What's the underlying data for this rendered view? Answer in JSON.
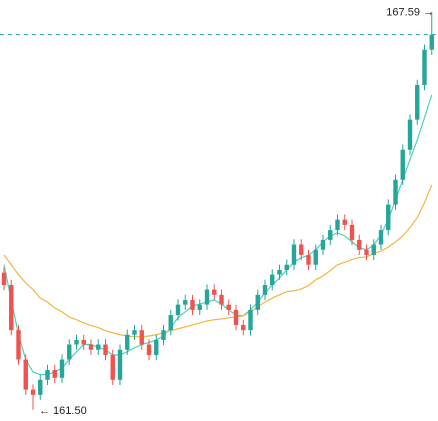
{
  "chart_data": {
    "type": "candlestick",
    "ylim": [
      161.33,
      167.77
    ],
    "up_color": "#26a69a",
    "down_color": "#ef5350",
    "last_price_line": true,
    "high_label": "167.59 →",
    "low_label": "← 161.50",
    "open": [
      163.6,
      163.41,
      162.72,
      162.27,
      161.81,
      161.73,
      161.96,
      162.11,
      161.99,
      162.27,
      162.5,
      162.57,
      162.5,
      162.42,
      162.5,
      162.34,
      161.96,
      162.42,
      162.65,
      162.72,
      162.5,
      162.34,
      162.57,
      162.72,
      162.95,
      163.11,
      163.18,
      163.03,
      163.11,
      163.34,
      163.26,
      163.11,
      163.03,
      162.8,
      162.72,
      163.03,
      163.26,
      163.41,
      163.57,
      163.64,
      163.72,
      164.03,
      163.87,
      163.72,
      163.95,
      164.1,
      164.25,
      164.41,
      164.33,
      164.1,
      163.95,
      163.87,
      164.03,
      164.25,
      164.64,
      165.02,
      165.48,
      165.94,
      166.47,
      167.01
    ],
    "high": [
      163.68,
      163.49,
      162.8,
      162.35,
      161.89,
      162.04,
      162.19,
      162.19,
      162.35,
      162.58,
      162.65,
      162.65,
      162.58,
      162.58,
      162.58,
      162.42,
      162.5,
      162.73,
      162.8,
      162.8,
      162.58,
      162.65,
      162.8,
      163.03,
      163.19,
      163.26,
      163.26,
      163.19,
      163.42,
      163.42,
      163.34,
      163.19,
      163.11,
      162.88,
      163.11,
      163.34,
      163.49,
      163.65,
      163.72,
      163.8,
      164.11,
      164.11,
      163.95,
      164.03,
      164.18,
      164.33,
      164.49,
      164.49,
      164.41,
      164.18,
      164.03,
      164.11,
      164.33,
      164.72,
      165.1,
      165.56,
      166.02,
      166.55,
      167.09,
      167.59
    ],
    "low": [
      163.33,
      162.64,
      162.19,
      161.73,
      161.5,
      161.65,
      161.88,
      161.91,
      161.91,
      162.19,
      162.42,
      162.42,
      162.34,
      162.34,
      162.26,
      161.88,
      161.88,
      162.34,
      162.57,
      162.42,
      162.26,
      162.26,
      162.49,
      162.64,
      162.87,
      163.03,
      162.95,
      162.95,
      163.03,
      163.18,
      163.03,
      162.95,
      162.72,
      162.64,
      162.64,
      162.95,
      163.18,
      163.33,
      163.49,
      163.56,
      163.64,
      163.79,
      163.64,
      163.64,
      163.87,
      164.02,
      164.17,
      164.25,
      164.02,
      163.87,
      163.79,
      163.79,
      163.95,
      164.17,
      164.56,
      164.94,
      165.4,
      165.86,
      166.39,
      166.93
    ],
    "close": [
      163.41,
      162.72,
      162.27,
      161.81,
      161.73,
      161.96,
      162.11,
      161.99,
      162.27,
      162.5,
      162.57,
      162.5,
      162.42,
      162.5,
      162.34,
      161.96,
      162.42,
      162.65,
      162.72,
      162.5,
      162.34,
      162.57,
      162.72,
      162.95,
      163.11,
      163.18,
      163.03,
      163.11,
      163.34,
      163.26,
      163.11,
      163.03,
      162.8,
      162.72,
      163.03,
      163.26,
      163.41,
      163.57,
      163.64,
      163.72,
      164.03,
      163.87,
      163.72,
      163.95,
      164.1,
      164.25,
      164.41,
      164.33,
      164.1,
      163.95,
      163.87,
      164.03,
      164.25,
      164.64,
      165.02,
      165.48,
      165.94,
      166.47,
      167.01,
      167.24
    ],
    "lines": [
      {
        "color": "#4fd1c0",
        "values": [
          163.72,
          163.18,
          162.65,
          162.27,
          162.08,
          162.04,
          162.04,
          162.08,
          162.14,
          162.27,
          162.39,
          162.5,
          162.5,
          162.46,
          162.42,
          162.34,
          162.34,
          162.39,
          162.45,
          162.5,
          162.53,
          162.57,
          162.63,
          162.76,
          162.91,
          163.0,
          163.09,
          163.12,
          163.15,
          163.18,
          163.12,
          163.03,
          162.95,
          162.94,
          163.03,
          163.15,
          163.29,
          163.41,
          163.52,
          163.64,
          163.76,
          163.83,
          163.86,
          163.95,
          164.07,
          164.16,
          164.21,
          164.16,
          164.07,
          163.98,
          163.95,
          164.02,
          164.18,
          164.41,
          164.71,
          165.02,
          165.33,
          165.63,
          165.97,
          166.32
        ]
      },
      {
        "color": "#f4b63f",
        "values": [
          163.87,
          163.72,
          163.57,
          163.44,
          163.34,
          163.21,
          163.15,
          163.06,
          163.0,
          162.92,
          162.88,
          162.83,
          162.79,
          162.76,
          162.71,
          162.68,
          162.65,
          162.63,
          162.62,
          162.62,
          162.63,
          162.65,
          162.68,
          162.71,
          162.74,
          162.77,
          162.8,
          162.83,
          162.86,
          162.88,
          162.89,
          162.91,
          162.92,
          162.94,
          163.0,
          163.08,
          163.15,
          163.21,
          163.26,
          163.31,
          163.32,
          163.35,
          163.4,
          163.49,
          163.55,
          163.63,
          163.72,
          163.76,
          163.8,
          163.83,
          163.84,
          163.89,
          163.93,
          163.99,
          164.07,
          164.16,
          164.29,
          164.44,
          164.67,
          164.94
        ]
      }
    ]
  }
}
